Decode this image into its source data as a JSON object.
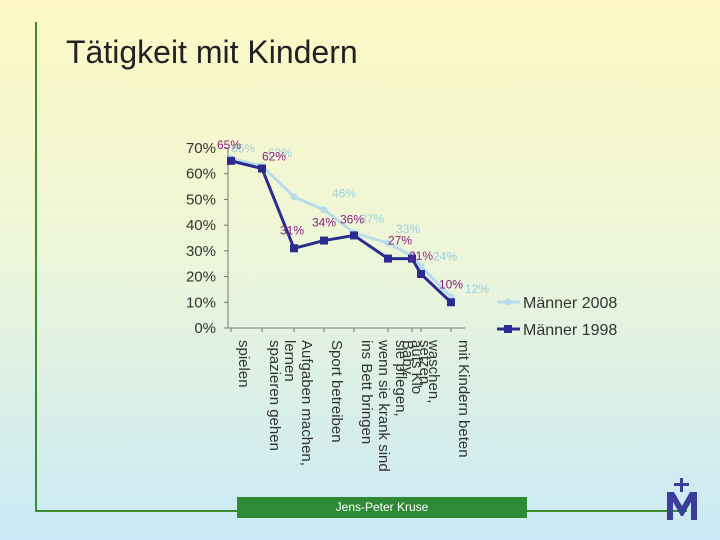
{
  "title": "Tätigkeit mit Kindern",
  "footer": "Jens-Peter Kruse",
  "chart_data": {
    "type": "line",
    "categories": [
      "spielen",
      "spazieren gehen",
      "Aufgaben machen, lernen",
      "Sport betreiben",
      "ins Bett bringen",
      "sie pflegen, wenn sie krank sind",
      "setzen, Baby",
      "waschen, aufs Klo",
      "mit Kindern beten"
    ],
    "ylim": [
      0,
      70
    ],
    "yticks": [
      "0%",
      "10%",
      "20%",
      "30%",
      "40%",
      "50%",
      "60%",
      "70%"
    ],
    "series": [
      {
        "name": "Männer 2008",
        "color": "#b9dcea",
        "labels": [
          "66%",
          "63%",
          "",
          "46%",
          "37%",
          "33%",
          "",
          "24%",
          "12%"
        ],
        "values": [
          66,
          63,
          51,
          46,
          37,
          33,
          28,
          24,
          12
        ]
      },
      {
        "name": "Männer 1998",
        "color": "#2a2d8f",
        "labels": [
          "65%",
          "62%",
          "31%",
          "34%",
          "36%",
          "27%",
          "",
          "21%",
          "10%"
        ],
        "values": [
          65,
          62,
          31,
          34,
          36,
          27,
          27,
          21,
          10
        ]
      }
    ],
    "legend": "right"
  }
}
